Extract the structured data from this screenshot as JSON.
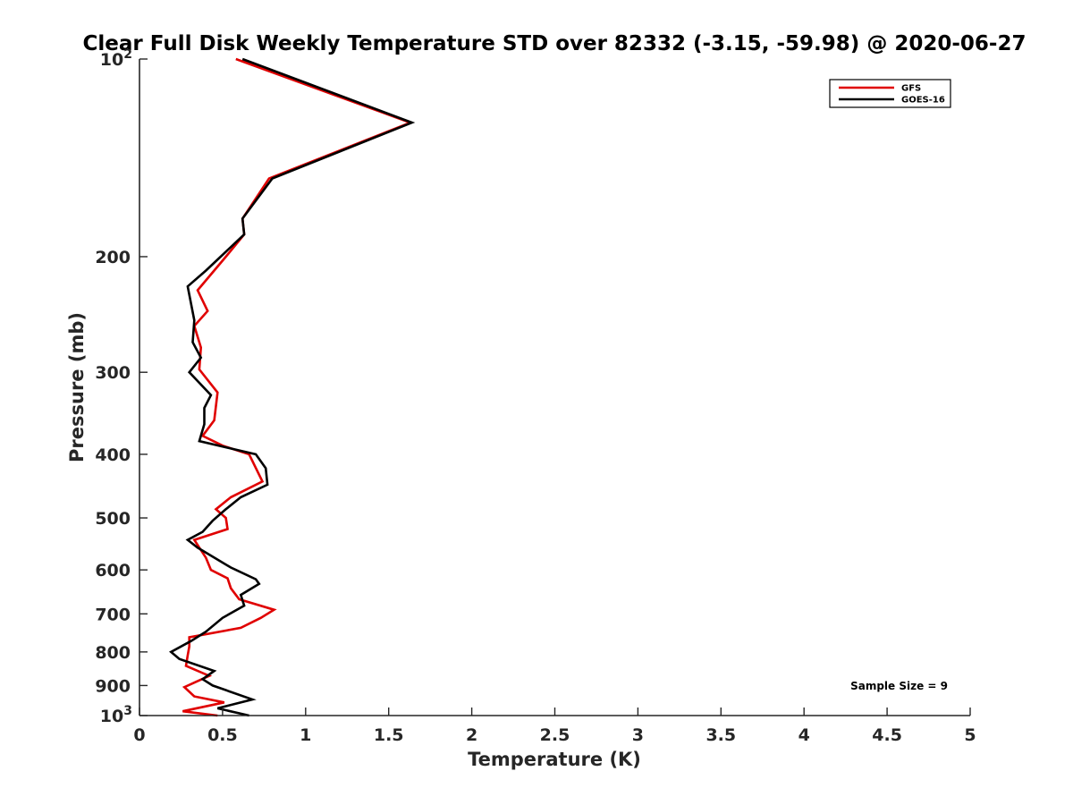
{
  "chart_data": {
    "type": "line",
    "title": "Clear Full Disk Weekly Temperature STD over 82332 (-3.15, -59.98) @ 2020-06-27",
    "xlabel": "Temperature (K)",
    "ylabel": "Pressure (mb)",
    "xlim": [
      0,
      5
    ],
    "ylim": [
      1000,
      100
    ],
    "y_scale": "log",
    "y_reversed": true,
    "grid": false,
    "legend_position": "top-right",
    "x_ticks": [
      {
        "value": 0,
        "label": "0"
      },
      {
        "value": 0.5,
        "label": "0.5"
      },
      {
        "value": 1,
        "label": "1"
      },
      {
        "value": 1.5,
        "label": "1.5"
      },
      {
        "value": 2,
        "label": "2"
      },
      {
        "value": 2.5,
        "label": "2.5"
      },
      {
        "value": 3,
        "label": "3"
      },
      {
        "value": 3.5,
        "label": "3.5"
      },
      {
        "value": 4,
        "label": "4"
      },
      {
        "value": 4.5,
        "label": "4.5"
      },
      {
        "value": 5,
        "label": "5"
      }
    ],
    "y_ticks": [
      {
        "value": 100,
        "base": "10",
        "exp": "2"
      },
      {
        "value": 200,
        "label": "200"
      },
      {
        "value": 300,
        "label": "300"
      },
      {
        "value": 400,
        "label": "400"
      },
      {
        "value": 500,
        "label": "500"
      },
      {
        "value": 600,
        "label": "600"
      },
      {
        "value": 700,
        "label": "700"
      },
      {
        "value": 800,
        "label": "800"
      },
      {
        "value": 900,
        "label": "900"
      },
      {
        "value": 1000,
        "base": "10",
        "exp": "3"
      }
    ],
    "series": [
      {
        "name": "GFS",
        "color": "#e00000",
        "points": [
          [
            0.58,
            100
          ],
          [
            1.63,
            125
          ],
          [
            0.78,
            152
          ],
          [
            0.62,
            175
          ],
          [
            0.63,
            185
          ],
          [
            0.52,
            200
          ],
          [
            0.35,
            225
          ],
          [
            0.41,
            242
          ],
          [
            0.33,
            255
          ],
          [
            0.37,
            275
          ],
          [
            0.36,
            297
          ],
          [
            0.47,
            322
          ],
          [
            0.45,
            355
          ],
          [
            0.38,
            375
          ],
          [
            0.5,
            388
          ],
          [
            0.66,
            400
          ],
          [
            0.74,
            440
          ],
          [
            0.55,
            465
          ],
          [
            0.46,
            485
          ],
          [
            0.52,
            500
          ],
          [
            0.53,
            520
          ],
          [
            0.33,
            540
          ],
          [
            0.4,
            575
          ],
          [
            0.43,
            600
          ],
          [
            0.53,
            618
          ],
          [
            0.55,
            640
          ],
          [
            0.6,
            665
          ],
          [
            0.81,
            690
          ],
          [
            0.73,
            710
          ],
          [
            0.61,
            735
          ],
          [
            0.3,
            760
          ],
          [
            0.3,
            785
          ],
          [
            0.29,
            810
          ],
          [
            0.28,
            840
          ],
          [
            0.42,
            870
          ],
          [
            0.27,
            905
          ],
          [
            0.33,
            935
          ],
          [
            0.51,
            955
          ],
          [
            0.26,
            985
          ],
          [
            0.47,
            1000
          ]
        ]
      },
      {
        "name": "GOES-16",
        "color": "#000000",
        "points": [
          [
            0.62,
            100
          ],
          [
            1.64,
            125
          ],
          [
            0.8,
            152
          ],
          [
            0.62,
            175
          ],
          [
            0.63,
            185
          ],
          [
            0.4,
            210
          ],
          [
            0.29,
            222
          ],
          [
            0.33,
            250
          ],
          [
            0.32,
            270
          ],
          [
            0.37,
            285
          ],
          [
            0.3,
            300
          ],
          [
            0.43,
            325
          ],
          [
            0.39,
            340
          ],
          [
            0.39,
            360
          ],
          [
            0.36,
            382
          ],
          [
            0.7,
            400
          ],
          [
            0.76,
            420
          ],
          [
            0.77,
            445
          ],
          [
            0.61,
            465
          ],
          [
            0.52,
            485
          ],
          [
            0.44,
            505
          ],
          [
            0.38,
            525
          ],
          [
            0.29,
            540
          ],
          [
            0.35,
            555
          ],
          [
            0.55,
            595
          ],
          [
            0.7,
            620
          ],
          [
            0.72,
            630
          ],
          [
            0.61,
            655
          ],
          [
            0.63,
            680
          ],
          [
            0.5,
            710
          ],
          [
            0.4,
            745
          ],
          [
            0.31,
            770
          ],
          [
            0.19,
            800
          ],
          [
            0.24,
            820
          ],
          [
            0.45,
            855
          ],
          [
            0.38,
            880
          ],
          [
            0.44,
            900
          ],
          [
            0.68,
            945
          ],
          [
            0.47,
            975
          ],
          [
            0.66,
            1000
          ]
        ]
      }
    ],
    "annotation": "Sample Size = 9"
  }
}
